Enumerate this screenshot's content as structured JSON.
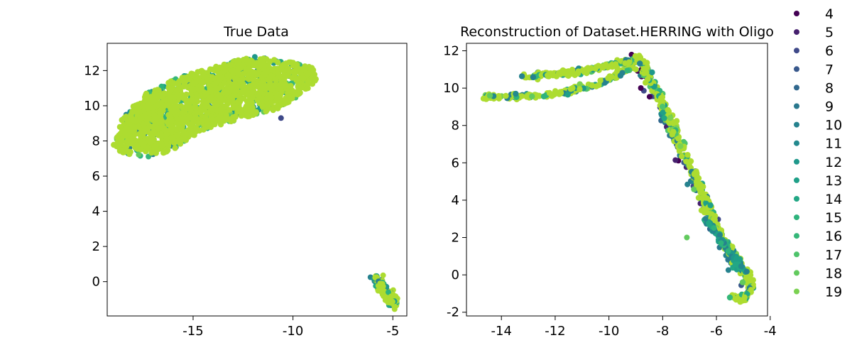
{
  "chart_data": [
    {
      "type": "scatter",
      "title": "True Data",
      "xlim": [
        -19.3,
        -4.3
      ],
      "ylim": [
        -1.95,
        13.55
      ],
      "xticks": [
        -15,
        -10,
        -5
      ],
      "yticks": [
        0,
        2,
        4,
        6,
        8,
        10,
        12
      ],
      "xtick_labels": [
        "-15",
        "-10",
        "-5"
      ],
      "ytick_labels": [
        "0",
        "2",
        "4",
        "6",
        "8",
        "10",
        "12"
      ],
      "clusters": [
        {
          "name": "main",
          "x_range": [
            -19.0,
            -8.8
          ],
          "y_range": [
            7.0,
            12.9
          ]
        },
        {
          "name": "small",
          "x_range": [
            -6.0,
            -4.8
          ],
          "y_range": [
            -1.3,
            0.3
          ]
        }
      ]
    },
    {
      "type": "scatter",
      "title": "Reconstruction of Dataset.HERRING with Oligo",
      "xlim": [
        -15.3,
        -4.1
      ],
      "ylim": [
        -2.2,
        12.4
      ],
      "xticks": [
        -14,
        -12,
        -10,
        -8,
        -6,
        -4
      ],
      "yticks": [
        -2,
        0,
        2,
        4,
        6,
        8,
        10,
        12
      ],
      "xtick_labels": [
        "-14",
        "-12",
        "-10",
        "-8",
        "-6",
        "-4"
      ],
      "ytick_labels": [
        "-2",
        "0",
        "2",
        "4",
        "6",
        "8",
        "10",
        "12"
      ],
      "structure": {
        "lower_branch": [
          [
            -14.7,
            9.5
          ],
          [
            -12.2,
            9.6
          ],
          [
            -10.4,
            10.2
          ],
          [
            -9.1,
            11.2
          ]
        ],
        "upper_branch": [
          [
            -13.2,
            10.6
          ],
          [
            -11.0,
            10.9
          ],
          [
            -10.0,
            11.2
          ],
          [
            -8.8,
            11.6
          ]
        ],
        "diagonal": [
          [
            -8.8,
            11.6
          ],
          [
            -7.5,
            7.5
          ],
          [
            -6.6,
            4.5
          ],
          [
            -5.8,
            2.0
          ],
          [
            -5.0,
            0.3
          ],
          [
            -4.7,
            -0.8
          ],
          [
            -5.1,
            -1.4
          ],
          [
            -5.5,
            -1.1
          ]
        ],
        "outlier": [
          -7.1,
          2.0
        ]
      }
    }
  ],
  "legend": {
    "placement": "right",
    "entries": [
      {
        "label": "4",
        "color": "#440154"
      },
      {
        "label": "5",
        "color": "#46206e"
      },
      {
        "label": "6",
        "color": "#3f4989"
      },
      {
        "label": "7",
        "color": "#38588c"
      },
      {
        "label": "8",
        "color": "#31688e"
      },
      {
        "label": "9",
        "color": "#2a788e"
      },
      {
        "label": "10",
        "color": "#26828e"
      },
      {
        "label": "11",
        "color": "#23898e"
      },
      {
        "label": "12",
        "color": "#1f988b"
      },
      {
        "label": "13",
        "color": "#1fa088"
      },
      {
        "label": "14",
        "color": "#22a785"
      },
      {
        "label": "15",
        "color": "#2eb37c"
      },
      {
        "label": "16",
        "color": "#35b779"
      },
      {
        "label": "17",
        "color": "#4ec36b"
      },
      {
        "label": "18",
        "color": "#62ca5e"
      },
      {
        "label": "19",
        "color": "#7ad151"
      }
    ]
  },
  "colors": {
    "dominant": "#addc30",
    "dark": "#440154",
    "teal": "#21918c"
  }
}
